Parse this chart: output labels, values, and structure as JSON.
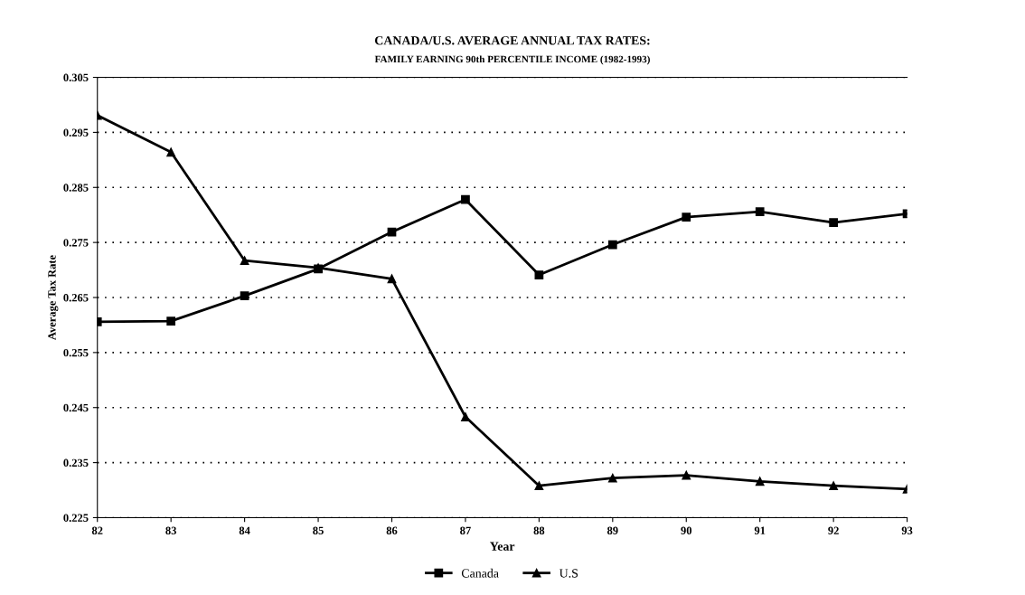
{
  "chart_data": {
    "type": "line",
    "title": "CANADA/U.S. AVERAGE ANNUAL TAX RATES:",
    "subtitle": "FAMILY EARNING 90th PERCENTILE INCOME (1982-1993)",
    "xlabel": "Year",
    "ylabel": "Average Tax Rate",
    "categories": [
      "82",
      "83",
      "84",
      "85",
      "86",
      "87",
      "88",
      "89",
      "90",
      "91",
      "92",
      "93"
    ],
    "series": [
      {
        "name": "Canada",
        "color": "#000000",
        "marker": "square",
        "values": [
          0.2606,
          0.2607,
          0.2653,
          0.2702,
          0.2769,
          0.2828,
          0.2691,
          0.2746,
          0.2796,
          0.2806,
          0.2786,
          0.2802
        ]
      },
      {
        "name": "U.S",
        "color": "#000000",
        "marker": "triangle",
        "values": [
          0.2981,
          0.2914,
          0.2717,
          0.2704,
          0.2684,
          0.2433,
          0.2308,
          0.2322,
          0.2327,
          0.2316,
          0.2308,
          0.2302
        ]
      }
    ],
    "ylim": [
      0.225,
      0.305
    ],
    "yticks": [
      0.225,
      0.235,
      0.245,
      0.255,
      0.265,
      0.275,
      0.285,
      0.295,
      0.305
    ],
    "grid": "y",
    "legend": "bottom",
    "line_style": "solid"
  }
}
